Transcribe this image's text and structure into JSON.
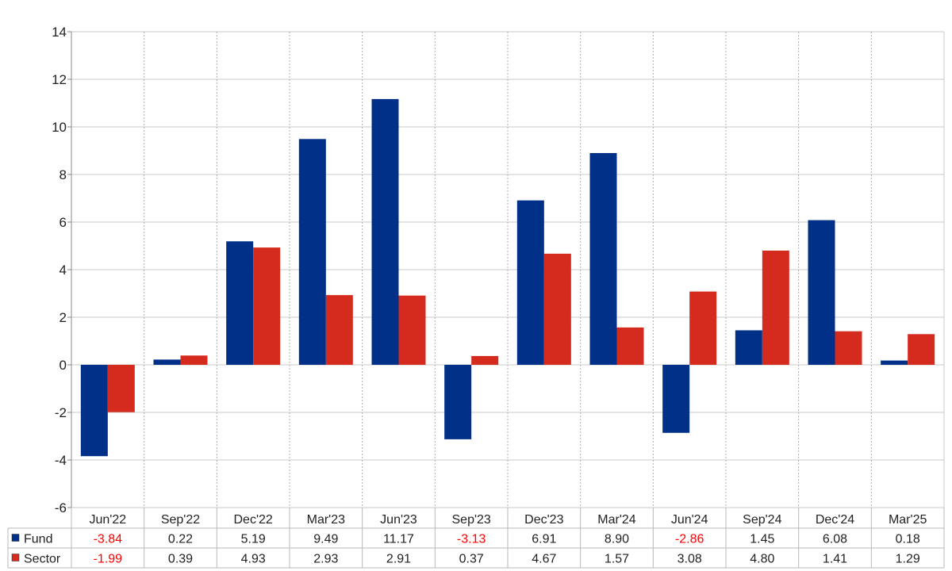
{
  "chart_data": {
    "type": "bar",
    "categories": [
      "Jun'22",
      "Sep'22",
      "Dec'22",
      "Mar'23",
      "Jun'23",
      "Sep'23",
      "Dec'23",
      "Mar'24",
      "Jun'24",
      "Sep'24",
      "Dec'24",
      "Mar'25"
    ],
    "series": [
      {
        "name": "Fund",
        "color": "#003087",
        "values": [
          -3.84,
          0.22,
          5.19,
          9.49,
          11.17,
          -3.13,
          6.91,
          8.9,
          -2.86,
          1.45,
          6.08,
          0.18
        ],
        "labels": [
          "-3.84",
          "0.22",
          "5.19",
          "9.49",
          "11.17",
          "-3.13",
          "6.91",
          "8.90",
          "-2.86",
          "1.45",
          "6.08",
          "0.18"
        ]
      },
      {
        "name": "Sector",
        "color": "#d52b1e",
        "values": [
          -1.99,
          0.39,
          4.93,
          2.93,
          2.91,
          0.37,
          4.67,
          1.57,
          3.08,
          4.8,
          1.41,
          1.29
        ],
        "labels": [
          "-1.99",
          "0.39",
          "4.93",
          "2.93",
          "2.91",
          "0.37",
          "4.67",
          "1.57",
          "3.08",
          "4.80",
          "1.41",
          "1.29"
        ]
      }
    ],
    "yticks": [
      "-6",
      "-4",
      "-2",
      "0",
      "2",
      "4",
      "6",
      "8",
      "10",
      "12",
      "14"
    ],
    "ylim": [
      -6,
      14
    ],
    "grid": true,
    "negative_color": "#ff0000",
    "legend": "table-below"
  }
}
